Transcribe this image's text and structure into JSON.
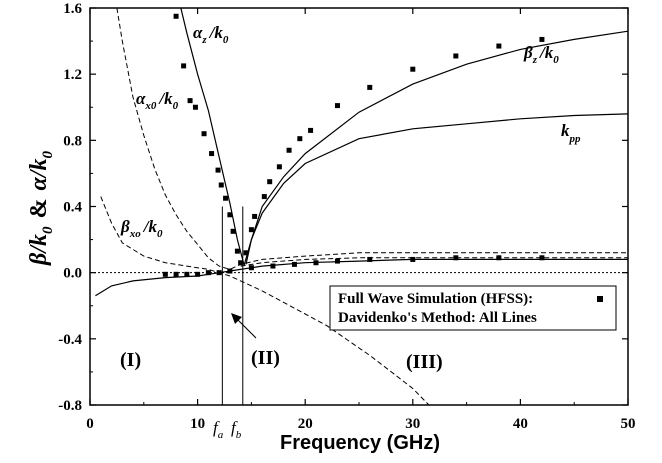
{
  "chart_data": {
    "type": "line",
    "title": "",
    "xlabel": "Frequency (GHz)",
    "ylabel": "β/k0 & α/k0",
    "ylabel_parts": {
      "beta": "β",
      "k": "k",
      "sub0": "0",
      "amp": "&",
      "alpha": "α",
      "slash": "/"
    },
    "xlim": [
      0,
      50
    ],
    "ylim": [
      -0.8,
      1.6
    ],
    "x_ticks": [
      0,
      10,
      20,
      30,
      40,
      50
    ],
    "x_tick_labels": [
      "0",
      "10",
      "20",
      "30",
      "40",
      "50"
    ],
    "y_ticks": [
      -0.8,
      -0.4,
      0.0,
      0.4,
      0.8,
      1.2,
      1.6
    ],
    "y_tick_labels": [
      "-0.8",
      "-0.4",
      "0.0",
      "0.4",
      "0.8",
      "1.2",
      "1.6"
    ],
    "grid": false,
    "series": [
      {
        "name": "βz/k0",
        "style": "solid",
        "points": [
          [
            14.5,
            0.05
          ],
          [
            15,
            0.2
          ],
          [
            16,
            0.4
          ],
          [
            18,
            0.58
          ],
          [
            20,
            0.72
          ],
          [
            25,
            0.97
          ],
          [
            30,
            1.14
          ],
          [
            35,
            1.26
          ],
          [
            40,
            1.35
          ],
          [
            45,
            1.41
          ],
          [
            50,
            1.46
          ]
        ]
      },
      {
        "name": "αz/k0",
        "style": "solid",
        "points": [
          [
            8,
            1.72
          ],
          [
            9,
            1.45
          ],
          [
            10,
            1.2
          ],
          [
            11,
            0.98
          ],
          [
            12,
            0.7
          ],
          [
            13,
            0.42
          ],
          [
            13.7,
            0.2
          ],
          [
            14.3,
            0.05
          ]
        ]
      },
      {
        "name": "kpp",
        "style": "solid",
        "points": [
          [
            14.3,
            0.04
          ],
          [
            15,
            0.2
          ],
          [
            16,
            0.36
          ],
          [
            18,
            0.54
          ],
          [
            20,
            0.66
          ],
          [
            25,
            0.81
          ],
          [
            30,
            0.87
          ],
          [
            35,
            0.9
          ],
          [
            40,
            0.93
          ],
          [
            45,
            0.95
          ],
          [
            50,
            0.96
          ]
        ]
      },
      {
        "name": "βx0/k0",
        "style": "dashed",
        "points": [
          [
            1,
            0.46
          ],
          [
            2,
            0.3
          ],
          [
            3,
            0.18
          ],
          [
            5,
            0.1
          ],
          [
            7,
            0.06
          ],
          [
            9,
            0.04
          ],
          [
            11,
            0.02
          ],
          [
            12,
            0.0
          ],
          [
            13,
            -0.02
          ],
          [
            14,
            -0.05
          ],
          [
            16,
            -0.11
          ],
          [
            18,
            -0.18
          ],
          [
            20,
            -0.25
          ],
          [
            22,
            -0.32
          ],
          [
            24,
            -0.41
          ],
          [
            26,
            -0.5
          ],
          [
            28,
            -0.6
          ],
          [
            30,
            -0.7
          ],
          [
            31.5,
            -0.8
          ]
        ]
      },
      {
        "name": "αx0/k0",
        "style": "dashed",
        "points": [
          [
            2.5,
            1.6
          ],
          [
            3,
            1.4
          ],
          [
            4,
            1.06
          ],
          [
            5,
            0.83
          ],
          [
            6,
            0.63
          ],
          [
            7,
            0.47
          ],
          [
            8,
            0.35
          ],
          [
            9,
            0.25
          ],
          [
            10,
            0.17
          ],
          [
            11,
            0.09
          ],
          [
            12,
            0.04
          ],
          [
            13,
            0.02
          ],
          [
            14,
            0.05
          ],
          [
            16,
            0.08
          ],
          [
            20,
            0.1
          ],
          [
            25,
            0.12
          ],
          [
            30,
            0.12
          ],
          [
            40,
            0.12
          ],
          [
            50,
            0.12
          ]
        ]
      },
      {
        "name": "",
        "style": "solid",
        "points": [
          [
            0.5,
            -0.14
          ],
          [
            2,
            -0.08
          ],
          [
            4,
            -0.05
          ],
          [
            7,
            -0.03
          ],
          [
            10,
            -0.02
          ],
          [
            12,
            0.0
          ],
          [
            14,
            0.02
          ],
          [
            16,
            0.04
          ],
          [
            20,
            0.06
          ],
          [
            25,
            0.07
          ],
          [
            30,
            0.08
          ],
          [
            40,
            0.08
          ],
          [
            50,
            0.08
          ]
        ]
      },
      {
        "name": "",
        "style": "dashed",
        "points": [
          [
            14,
            0.04
          ],
          [
            16,
            0.06
          ],
          [
            20,
            0.08
          ],
          [
            25,
            0.09
          ],
          [
            30,
            0.09
          ],
          [
            40,
            0.09
          ],
          [
            50,
            0.09
          ]
        ]
      }
    ],
    "hfss_points": [
      [
        8,
        1.55
      ],
      [
        8.7,
        1.25
      ],
      [
        9.3,
        1.04
      ],
      [
        9.8,
        1.0
      ],
      [
        10.6,
        0.84
      ],
      [
        11.3,
        0.72
      ],
      [
        11.9,
        0.62
      ],
      [
        12.2,
        0.53
      ],
      [
        12.6,
        0.45
      ],
      [
        13.0,
        0.35
      ],
      [
        13.3,
        0.25
      ],
      [
        13.7,
        0.13
      ],
      [
        14.0,
        0.06
      ],
      [
        14.5,
        0.12
      ],
      [
        15,
        0.26
      ],
      [
        15.3,
        0.34
      ],
      [
        16.2,
        0.46
      ],
      [
        16.7,
        0.55
      ],
      [
        17.6,
        0.64
      ],
      [
        18.5,
        0.74
      ],
      [
        19.5,
        0.81
      ],
      [
        20.5,
        0.86
      ],
      [
        23,
        1.01
      ],
      [
        26,
        1.12
      ],
      [
        30,
        1.23
      ],
      [
        34,
        1.31
      ],
      [
        38,
        1.37
      ],
      [
        42,
        1.41
      ],
      [
        7,
        -0.01
      ],
      [
        8,
        -0.01
      ],
      [
        9,
        -0.01
      ],
      [
        10,
        -0.01
      ],
      [
        11,
        0.0
      ],
      [
        12,
        0.0
      ],
      [
        13,
        0.01
      ],
      [
        15,
        0.03
      ],
      [
        17,
        0.04
      ],
      [
        19,
        0.05
      ],
      [
        21,
        0.06
      ],
      [
        23,
        0.07
      ],
      [
        26,
        0.08
      ],
      [
        30,
        0.08
      ],
      [
        34,
        0.09
      ],
      [
        38,
        0.09
      ],
      [
        42,
        0.09
      ]
    ],
    "annotations": {
      "beta_z": {
        "main": "β",
        "sub1": "z",
        "slash": "/k",
        "sub2": "0"
      },
      "alpha_z": {
        "main": "α",
        "sub1": "z",
        "slash": "/k",
        "sub2": "0"
      },
      "alpha_x0": {
        "main": "α",
        "sub1": "x0",
        "slash": "/k",
        "sub2": "0"
      },
      "beta_xo": {
        "main": "β",
        "sub1": "xo",
        "slash": "/k",
        "sub2": "0"
      },
      "k_pp": {
        "main": "k",
        "sub1": "pp"
      },
      "regions": [
        "(I)",
        "(II)",
        "(III)"
      ],
      "f_a": {
        "main": "f",
        "sub": "a"
      },
      "f_b": {
        "main": "f",
        "sub": "b"
      }
    },
    "vertical_lines": [
      12.3,
      14.2
    ],
    "legend": {
      "line1": "Full Wave Simulation (HFSS):",
      "line2": "Davidenko's Method: All Lines"
    }
  }
}
